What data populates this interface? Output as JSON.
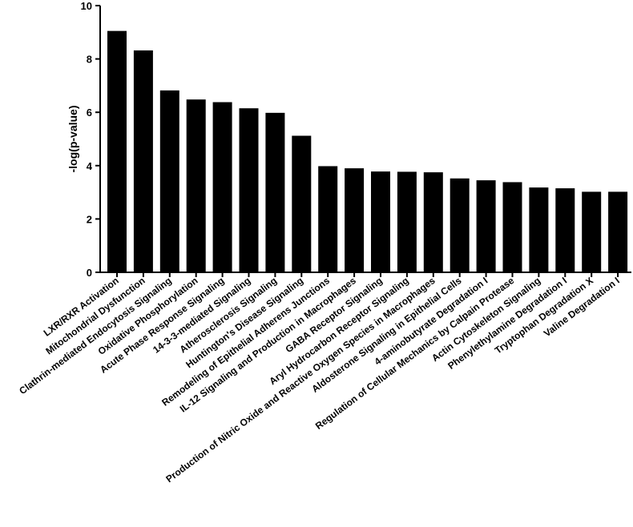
{
  "chart_data": {
    "type": "bar",
    "ylabel": "-log(p-value)",
    "ylim": [
      0,
      10
    ],
    "yticks": [
      0,
      2,
      4,
      6,
      8,
      10
    ],
    "grid": false,
    "legend": "none",
    "bar_color": "#000000",
    "categories": [
      "LXR/RXR Activation",
      "Mitochondrial Dysfunction",
      "Clathrin-mediated Endocytosis Signaling",
      "Oxidative Phosphorylation",
      "Acute Phase Response Signaling",
      "14-3-3-mediated Signaling",
      "Atherosclerosis Signaling",
      "Huntington's Disease Signaling",
      "Remodeling of Epithelial Adherens Junctions",
      "IL-12 Signaling and Production in Macrophages",
      "GABA Receptor Signaling",
      "Aryl Hydrocarbon Receptor Signaling",
      "Production of Nitric Oxide and Reactive Oxygen Species in Macrophages",
      "Aldosterone Signaling in Epithelial Cells",
      "4-aminobutyrate Degradation I",
      "Regulation of Cellular Mechanics by Calpain Protease",
      "Actin Cytoskeleton Signaling",
      "Phenylethylamine Degradation I",
      "Tryptophan Degradation X",
      "Valine Degradation I"
    ],
    "values": [
      9.05,
      8.32,
      6.82,
      6.48,
      6.38,
      6.15,
      5.98,
      5.12,
      3.98,
      3.9,
      3.78,
      3.77,
      3.75,
      3.52,
      3.45,
      3.38,
      3.18,
      3.15,
      3.02,
      3.02
    ]
  }
}
